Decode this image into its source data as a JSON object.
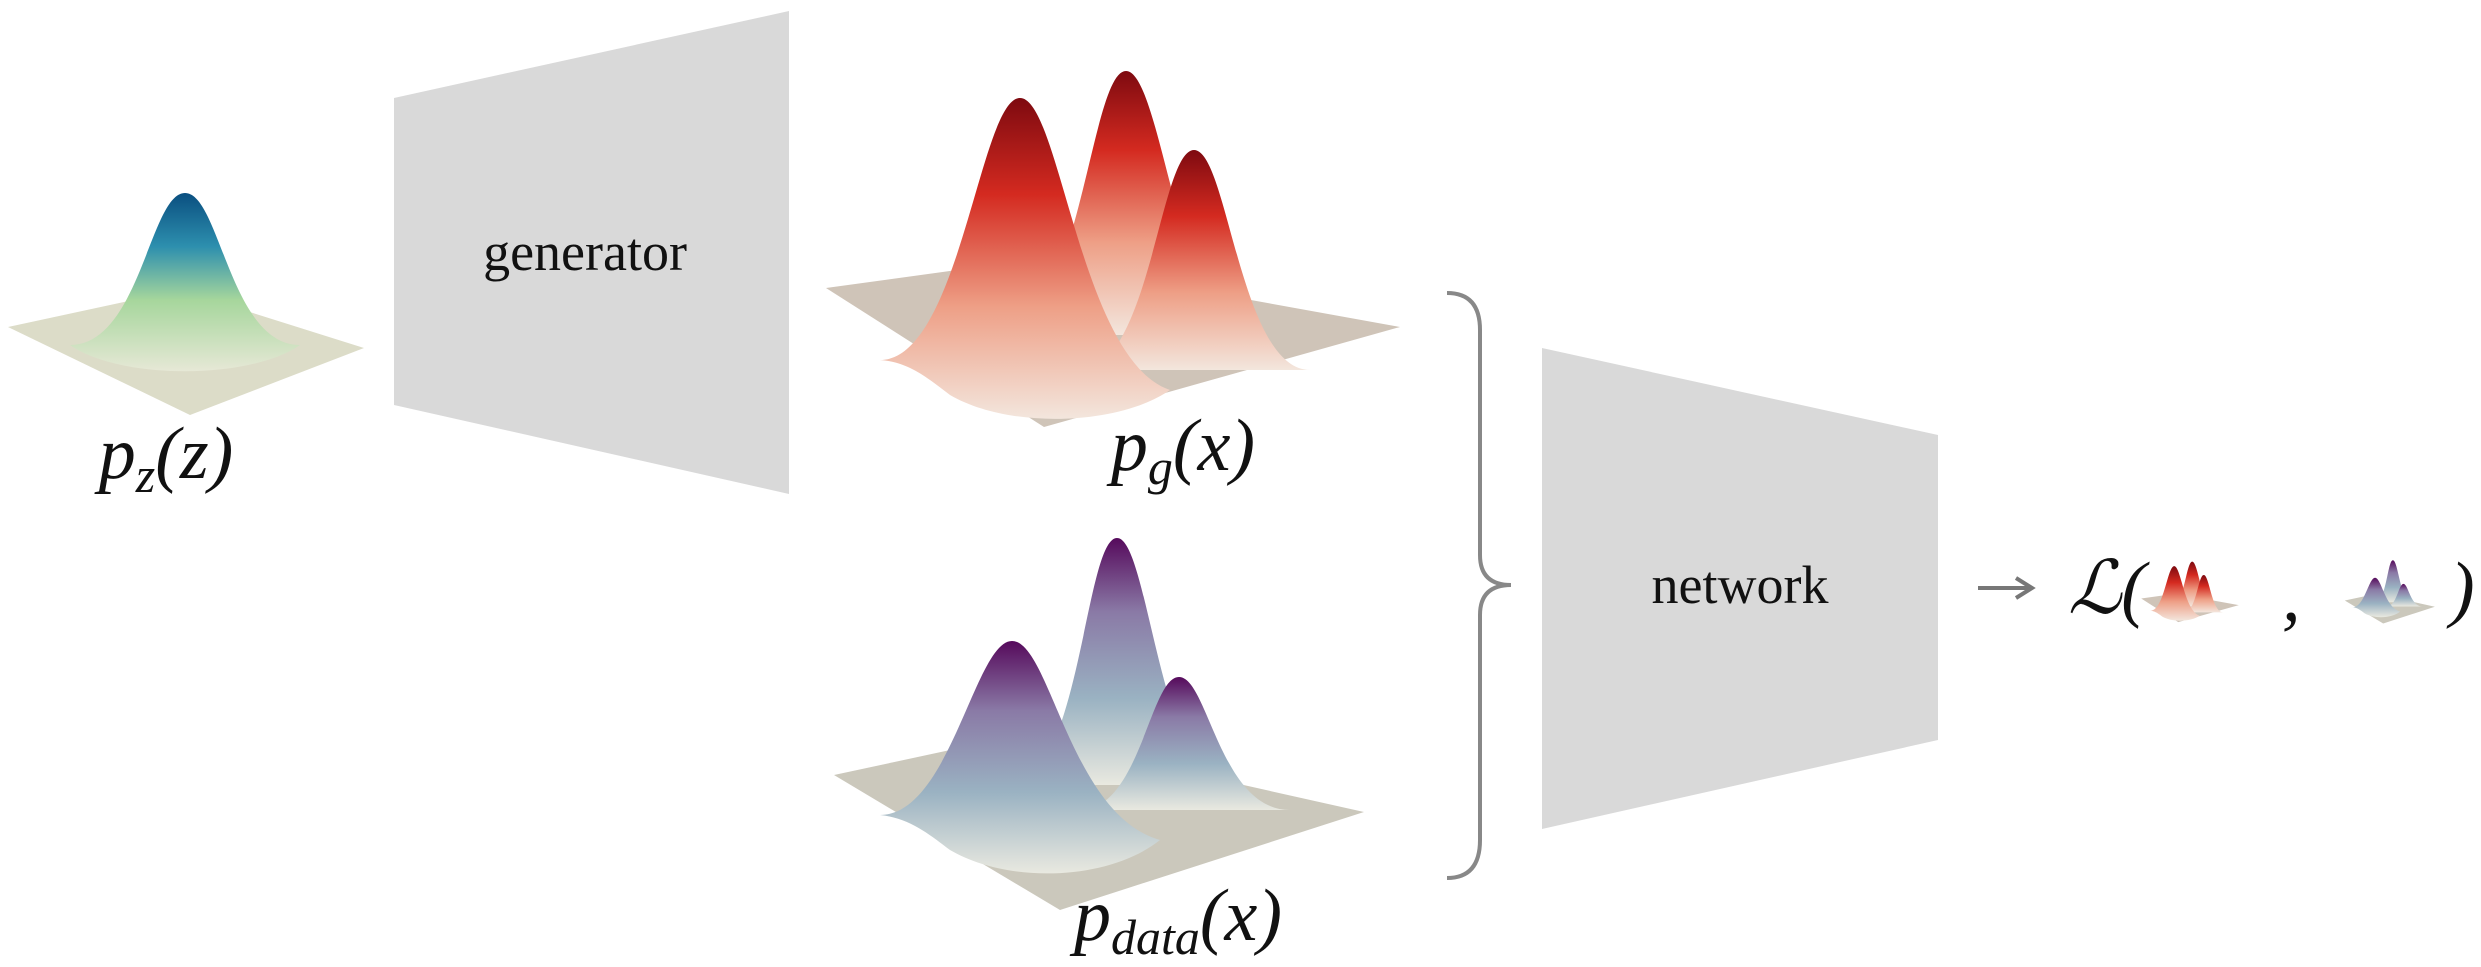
{
  "nodes": {
    "prior": {
      "symbol": "p",
      "subscript": "z",
      "argument": "(z)"
    },
    "generator": {
      "label": "generator"
    },
    "generated": {
      "symbol": "p",
      "subscript": "g",
      "argument": "(x)"
    },
    "data": {
      "symbol": "p",
      "subscript": "data",
      "argument": "(x)"
    },
    "network": {
      "label": "network"
    },
    "loss": {
      "open": "ℒ(",
      "separator": ",",
      "close": ")"
    }
  }
}
